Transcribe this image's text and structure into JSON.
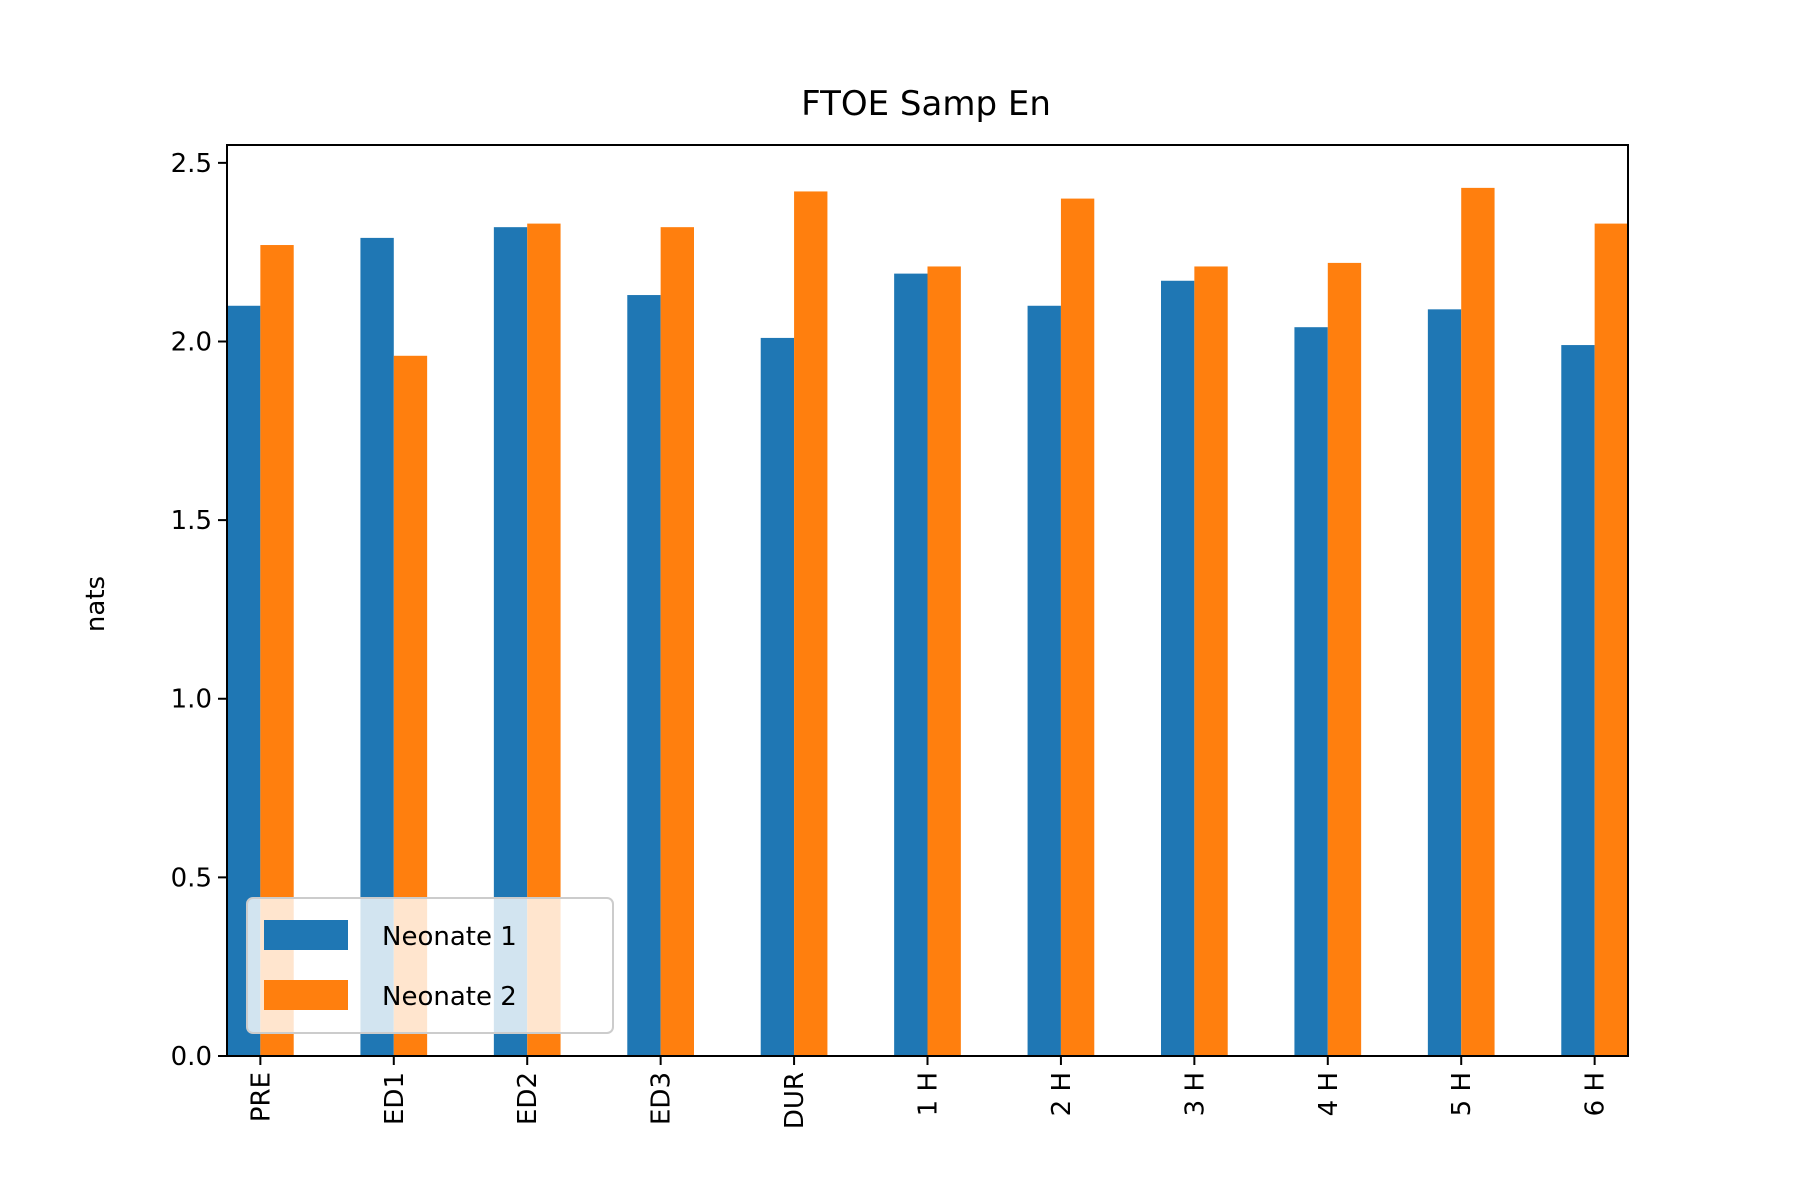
{
  "chart_data": {
    "type": "bar",
    "title": "FTOE Samp En",
    "xlabel": "",
    "ylabel": "nats",
    "ylim": [
      0,
      2.55
    ],
    "yticks": [
      0.0,
      0.5,
      1.0,
      1.5,
      2.0,
      2.5
    ],
    "ytick_labels": [
      "0.0",
      "0.5",
      "1.0",
      "1.5",
      "2.0",
      "2.5"
    ],
    "categories": [
      "PRE",
      "ED1",
      "ED2",
      "ED3",
      "DUR",
      "1 H",
      "2 H",
      "3 H",
      "4 H",
      "5 H",
      "6 H"
    ],
    "series": [
      {
        "name": "Neonate 1",
        "color": "#1f77b4",
        "values": [
          2.1,
          2.29,
          2.32,
          2.13,
          2.01,
          2.19,
          2.1,
          2.17,
          2.04,
          2.09,
          1.99
        ]
      },
      {
        "name": "Neonate 2",
        "color": "#ff7f0e",
        "values": [
          2.27,
          1.96,
          2.33,
          2.32,
          2.42,
          2.21,
          2.4,
          2.21,
          2.22,
          2.43,
          2.33
        ]
      }
    ],
    "grid": false,
    "legend_position": "lower-left"
  }
}
